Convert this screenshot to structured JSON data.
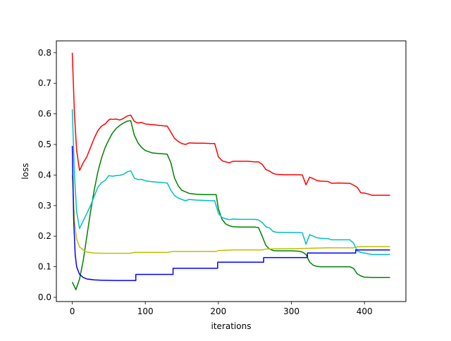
{
  "figure": {
    "xlabel": "iterations",
    "ylabel": "loss"
  },
  "chart_data": {
    "type": "line",
    "xlabel": "iterations",
    "ylabel": "loss",
    "xlim": [
      -21.75,
      456.75
    ],
    "ylim": [
      -0.0138,
      0.8388
    ],
    "xticks": [
      0,
      100,
      200,
      300,
      400
    ],
    "yticks": [
      0.0,
      0.1,
      0.2,
      0.3,
      0.4,
      0.5,
      0.6,
      0.7,
      0.8
    ],
    "ytick_labels": [
      "0.0",
      "0.1",
      "0.2",
      "0.3",
      "0.4",
      "0.5",
      "0.6",
      "0.7",
      "0.8"
    ],
    "grid": false,
    "legend": "none",
    "series": [
      {
        "color": "#ff0000",
        "x": [
          0,
          3,
          6,
          10,
          15,
          20,
          25,
          30,
          35,
          40,
          45,
          50,
          52,
          55,
          60,
          65,
          70,
          75,
          80,
          85,
          90,
          95,
          100,
          110,
          120,
          130,
          135,
          140,
          145,
          150,
          155,
          160,
          170,
          180,
          190,
          195,
          200,
          205,
          210,
          215,
          220,
          230,
          240,
          250,
          255,
          260,
          265,
          270,
          275,
          280,
          290,
          300,
          310,
          315,
          320,
          325,
          330,
          335,
          340,
          350,
          355,
          365,
          375,
          380,
          385,
          390,
          395,
          400,
          405,
          410,
          420,
          430,
          435
        ],
        "y": [
          0.8,
          0.6,
          0.48,
          0.415,
          0.44,
          0.46,
          0.49,
          0.52,
          0.545,
          0.56,
          0.567,
          0.58,
          0.583,
          0.582,
          0.583,
          0.58,
          0.585,
          0.593,
          0.596,
          0.575,
          0.57,
          0.572,
          0.567,
          0.565,
          0.562,
          0.56,
          0.54,
          0.52,
          0.51,
          0.503,
          0.5,
          0.505,
          0.504,
          0.504,
          0.503,
          0.503,
          0.46,
          0.447,
          0.443,
          0.44,
          0.445,
          0.445,
          0.445,
          0.443,
          0.443,
          0.435,
          0.418,
          0.413,
          0.405,
          0.402,
          0.401,
          0.401,
          0.401,
          0.4,
          0.368,
          0.393,
          0.388,
          0.382,
          0.38,
          0.379,
          0.373,
          0.374,
          0.373,
          0.373,
          0.367,
          0.36,
          0.342,
          0.341,
          0.338,
          0.334,
          0.334,
          0.334,
          0.334
        ]
      },
      {
        "color": "#008000",
        "x": [
          0,
          5,
          10,
          15,
          20,
          25,
          30,
          35,
          40,
          45,
          50,
          55,
          60,
          65,
          70,
          75,
          80,
          85,
          90,
          95,
          100,
          110,
          120,
          130,
          135,
          140,
          145,
          150,
          160,
          170,
          180,
          190,
          197,
          200,
          205,
          210,
          215,
          220,
          230,
          240,
          250,
          255,
          260,
          265,
          270,
          275,
          280,
          290,
          300,
          310,
          315,
          320,
          325,
          330,
          335,
          340,
          350,
          360,
          370,
          380,
          385,
          390,
          395,
          400,
          410,
          420,
          430,
          435
        ],
        "y": [
          0.05,
          0.025,
          0.06,
          0.12,
          0.2,
          0.28,
          0.35,
          0.41,
          0.455,
          0.49,
          0.515,
          0.537,
          0.552,
          0.562,
          0.57,
          0.576,
          0.578,
          0.53,
          0.505,
          0.49,
          0.48,
          0.472,
          0.47,
          0.468,
          0.44,
          0.39,
          0.365,
          0.35,
          0.34,
          0.337,
          0.336,
          0.336,
          0.336,
          0.29,
          0.255,
          0.24,
          0.234,
          0.231,
          0.23,
          0.23,
          0.23,
          0.228,
          0.2,
          0.17,
          0.158,
          0.153,
          0.152,
          0.152,
          0.152,
          0.151,
          0.148,
          0.14,
          0.115,
          0.105,
          0.101,
          0.1,
          0.1,
          0.1,
          0.1,
          0.1,
          0.095,
          0.077,
          0.07,
          0.066,
          0.065,
          0.065,
          0.065,
          0.065
        ]
      },
      {
        "color": "#00bfbf",
        "x": [
          0,
          3,
          6,
          10,
          15,
          20,
          25,
          30,
          35,
          40,
          45,
          50,
          55,
          60,
          65,
          70,
          75,
          80,
          85,
          90,
          95,
          100,
          110,
          120,
          130,
          135,
          140,
          145,
          150,
          155,
          160,
          170,
          180,
          190,
          195,
          200,
          205,
          210,
          215,
          220,
          230,
          240,
          250,
          255,
          260,
          265,
          270,
          275,
          280,
          290,
          300,
          310,
          315,
          320,
          325,
          330,
          335,
          340,
          350,
          355,
          365,
          375,
          380,
          385,
          390,
          395,
          400,
          410,
          420,
          430,
          435
        ],
        "y": [
          0.615,
          0.4,
          0.28,
          0.225,
          0.25,
          0.275,
          0.3,
          0.33,
          0.36,
          0.375,
          0.382,
          0.398,
          0.396,
          0.398,
          0.399,
          0.402,
          0.41,
          0.414,
          0.39,
          0.385,
          0.386,
          0.381,
          0.378,
          0.376,
          0.374,
          0.35,
          0.333,
          0.325,
          0.32,
          0.316,
          0.32,
          0.318,
          0.317,
          0.316,
          0.316,
          0.275,
          0.261,
          0.257,
          0.254,
          0.256,
          0.255,
          0.255,
          0.255,
          0.253,
          0.245,
          0.231,
          0.227,
          0.215,
          0.213,
          0.212,
          0.212,
          0.212,
          0.211,
          0.174,
          0.205,
          0.2,
          0.195,
          0.193,
          0.192,
          0.188,
          0.188,
          0.188,
          0.188,
          0.178,
          0.152,
          0.147,
          0.145,
          0.14,
          0.14,
          0.14,
          0.14
        ]
      },
      {
        "color": "#bfbf00",
        "x": [
          0,
          3,
          6,
          10,
          15,
          20,
          30,
          40,
          60,
          80,
          85,
          100,
          120,
          130,
          135,
          140,
          160,
          180,
          197,
          200,
          220,
          240,
          260,
          265,
          300,
          350,
          385,
          390,
          400,
          420,
          435
        ],
        "y": [
          0.4,
          0.25,
          0.19,
          0.165,
          0.155,
          0.148,
          0.145,
          0.144,
          0.144,
          0.144,
          0.147,
          0.147,
          0.147,
          0.147,
          0.149,
          0.15,
          0.15,
          0.15,
          0.15,
          0.153,
          0.155,
          0.155,
          0.155,
          0.158,
          0.159,
          0.162,
          0.162,
          0.165,
          0.166,
          0.166,
          0.166
        ]
      },
      {
        "color": "#0000ff",
        "x": [
          0,
          2,
          4,
          6,
          10,
          15,
          20,
          30,
          40,
          60,
          87,
          87,
          100,
          120,
          138,
          138,
          160,
          180,
          199,
          199,
          220,
          240,
          262,
          262,
          280,
          300,
          320,
          322,
          322,
          360,
          380,
          388,
          388,
          420,
          435
        ],
        "y": [
          0.495,
          0.25,
          0.14,
          0.1,
          0.075,
          0.065,
          0.06,
          0.057,
          0.056,
          0.055,
          0.055,
          0.075,
          0.075,
          0.075,
          0.075,
          0.095,
          0.095,
          0.095,
          0.095,
          0.115,
          0.115,
          0.115,
          0.115,
          0.13,
          0.13,
          0.13,
          0.13,
          0.13,
          0.145,
          0.145,
          0.145,
          0.145,
          0.155,
          0.155,
          0.155
        ]
      }
    ]
  }
}
